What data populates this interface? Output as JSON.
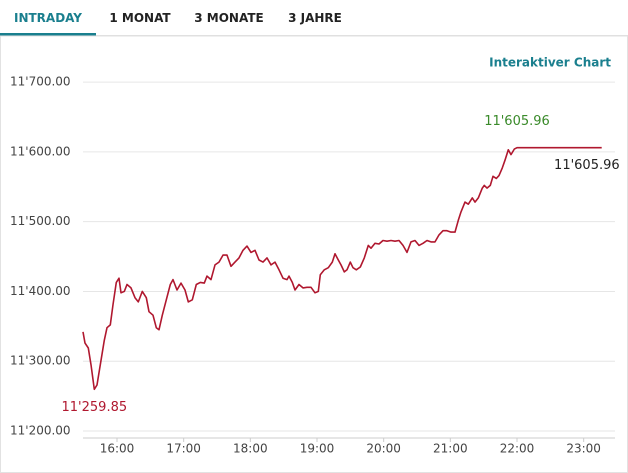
{
  "tabs": [
    "INTRADAY",
    "1 MONAT",
    "3 MONATE",
    "3 JAHRE"
  ],
  "link": "Interaktiver Chart",
  "chart_data": {
    "type": "line",
    "color": "#b0182f",
    "grid": true,
    "x": [
      15.49,
      15.52,
      15.57,
      15.61,
      15.66,
      15.7,
      15.75,
      15.81,
      15.85,
      15.9,
      15.94,
      15.99,
      16.03,
      16.06,
      16.11,
      16.15,
      16.21,
      16.27,
      16.32,
      16.38,
      16.44,
      16.48,
      16.54,
      16.59,
      16.63,
      16.68,
      16.74,
      16.8,
      16.84,
      16.9,
      16.96,
      17.02,
      17.07,
      17.13,
      17.19,
      17.25,
      17.31,
      17.35,
      17.41,
      17.47,
      17.53,
      17.59,
      17.65,
      17.71,
      17.77,
      17.83,
      17.89,
      17.95,
      18.01,
      18.07,
      18.13,
      18.19,
      18.25,
      18.31,
      18.37,
      18.43,
      18.49,
      18.55,
      18.58,
      18.63,
      18.67,
      18.73,
      18.79,
      18.85,
      18.91,
      18.97,
      19.02,
      19.05,
      19.11,
      19.17,
      19.23,
      19.27,
      19.32,
      19.36,
      19.41,
      19.45,
      19.5,
      19.54,
      19.59,
      19.65,
      19.71,
      19.77,
      19.81,
      19.87,
      19.93,
      19.99,
      20.05,
      20.11,
      20.17,
      20.23,
      20.29,
      20.35,
      20.41,
      20.47,
      20.53,
      20.59,
      20.65,
      20.71,
      20.77,
      20.83,
      20.89,
      20.95,
      21.01,
      21.07,
      21.12,
      21.16,
      21.22,
      21.27,
      21.33,
      21.37,
      21.42,
      21.48,
      21.51,
      21.55,
      21.6,
      21.64,
      21.69,
      21.73,
      21.78,
      21.82,
      21.87,
      21.91,
      21.96,
      22.0,
      23.27
    ],
    "values": [
      11342,
      11326,
      11319,
      11295,
      11259.85,
      11266,
      11295,
      11330,
      11348,
      11352,
      11381,
      11413,
      11419,
      11398,
      11400,
      11410,
      11405,
      11391,
      11385,
      11400,
      11391,
      11371,
      11366,
      11348,
      11345,
      11366,
      11388,
      11410,
      11417,
      11402,
      11412,
      11402,
      11385,
      11388,
      11410,
      11413,
      11412,
      11422,
      11417,
      11438,
      11442,
      11452,
      11452,
      11436,
      11442,
      11448,
      11459,
      11465,
      11456,
      11459,
      11445,
      11442,
      11448,
      11438,
      11442,
      11431,
      11419,
      11417,
      11422,
      11413,
      11402,
      11410,
      11405,
      11406,
      11406,
      11398,
      11400,
      11424,
      11431,
      11434,
      11442,
      11454,
      11445,
      11438,
      11428,
      11431,
      11442,
      11434,
      11431,
      11435,
      11448,
      11466,
      11462,
      11469,
      11468,
      11473,
      11472,
      11473,
      11472,
      11473,
      11466,
      11456,
      11471,
      11473,
      11466,
      11469,
      11473,
      11471,
      11471,
      11481,
      11487,
      11487,
      11485,
      11485,
      11502,
      11514,
      11528,
      11525,
      11534,
      11528,
      11534,
      11548,
      11552,
      11548,
      11552,
      11565,
      11562,
      11566,
      11577,
      11588,
      11603,
      11596,
      11604,
      11605.96,
      11605.96
    ],
    "xlim": [
      15.49,
      23.47
    ],
    "ylim": [
      11190,
      11766
    ],
    "xticks": [
      {
        "value": 16,
        "label": "16:00"
      },
      {
        "value": 17,
        "label": "17:00"
      },
      {
        "value": 18,
        "label": "18:00"
      },
      {
        "value": 19,
        "label": "19:00"
      },
      {
        "value": 20,
        "label": "20:00"
      },
      {
        "value": 21,
        "label": "21:00"
      },
      {
        "value": 22,
        "label": "22:00"
      },
      {
        "value": 23,
        "label": "23:00"
      }
    ],
    "yticks": [
      {
        "value": 11200,
        "label": "11'200.00"
      },
      {
        "value": 11300,
        "label": "11'300.00"
      },
      {
        "value": 11400,
        "label": "11'400.00"
      },
      {
        "value": 11500,
        "label": "11'500.00"
      },
      {
        "value": 11600,
        "label": "11'600.00"
      },
      {
        "value": 11700,
        "label": "11'700.00"
      }
    ],
    "annotations": [
      {
        "x": 15.66,
        "value": 11259.85,
        "label": "11'259.85",
        "color": "#b0182f",
        "position": "below"
      },
      {
        "x": 22.0,
        "value": 11605.96,
        "label": "11'605.96",
        "color": "#3a8a2a",
        "position": "above"
      },
      {
        "x": 23.27,
        "value": 11605.96,
        "label": "11'605.96",
        "color": "#222222",
        "position": "below-left"
      }
    ]
  }
}
